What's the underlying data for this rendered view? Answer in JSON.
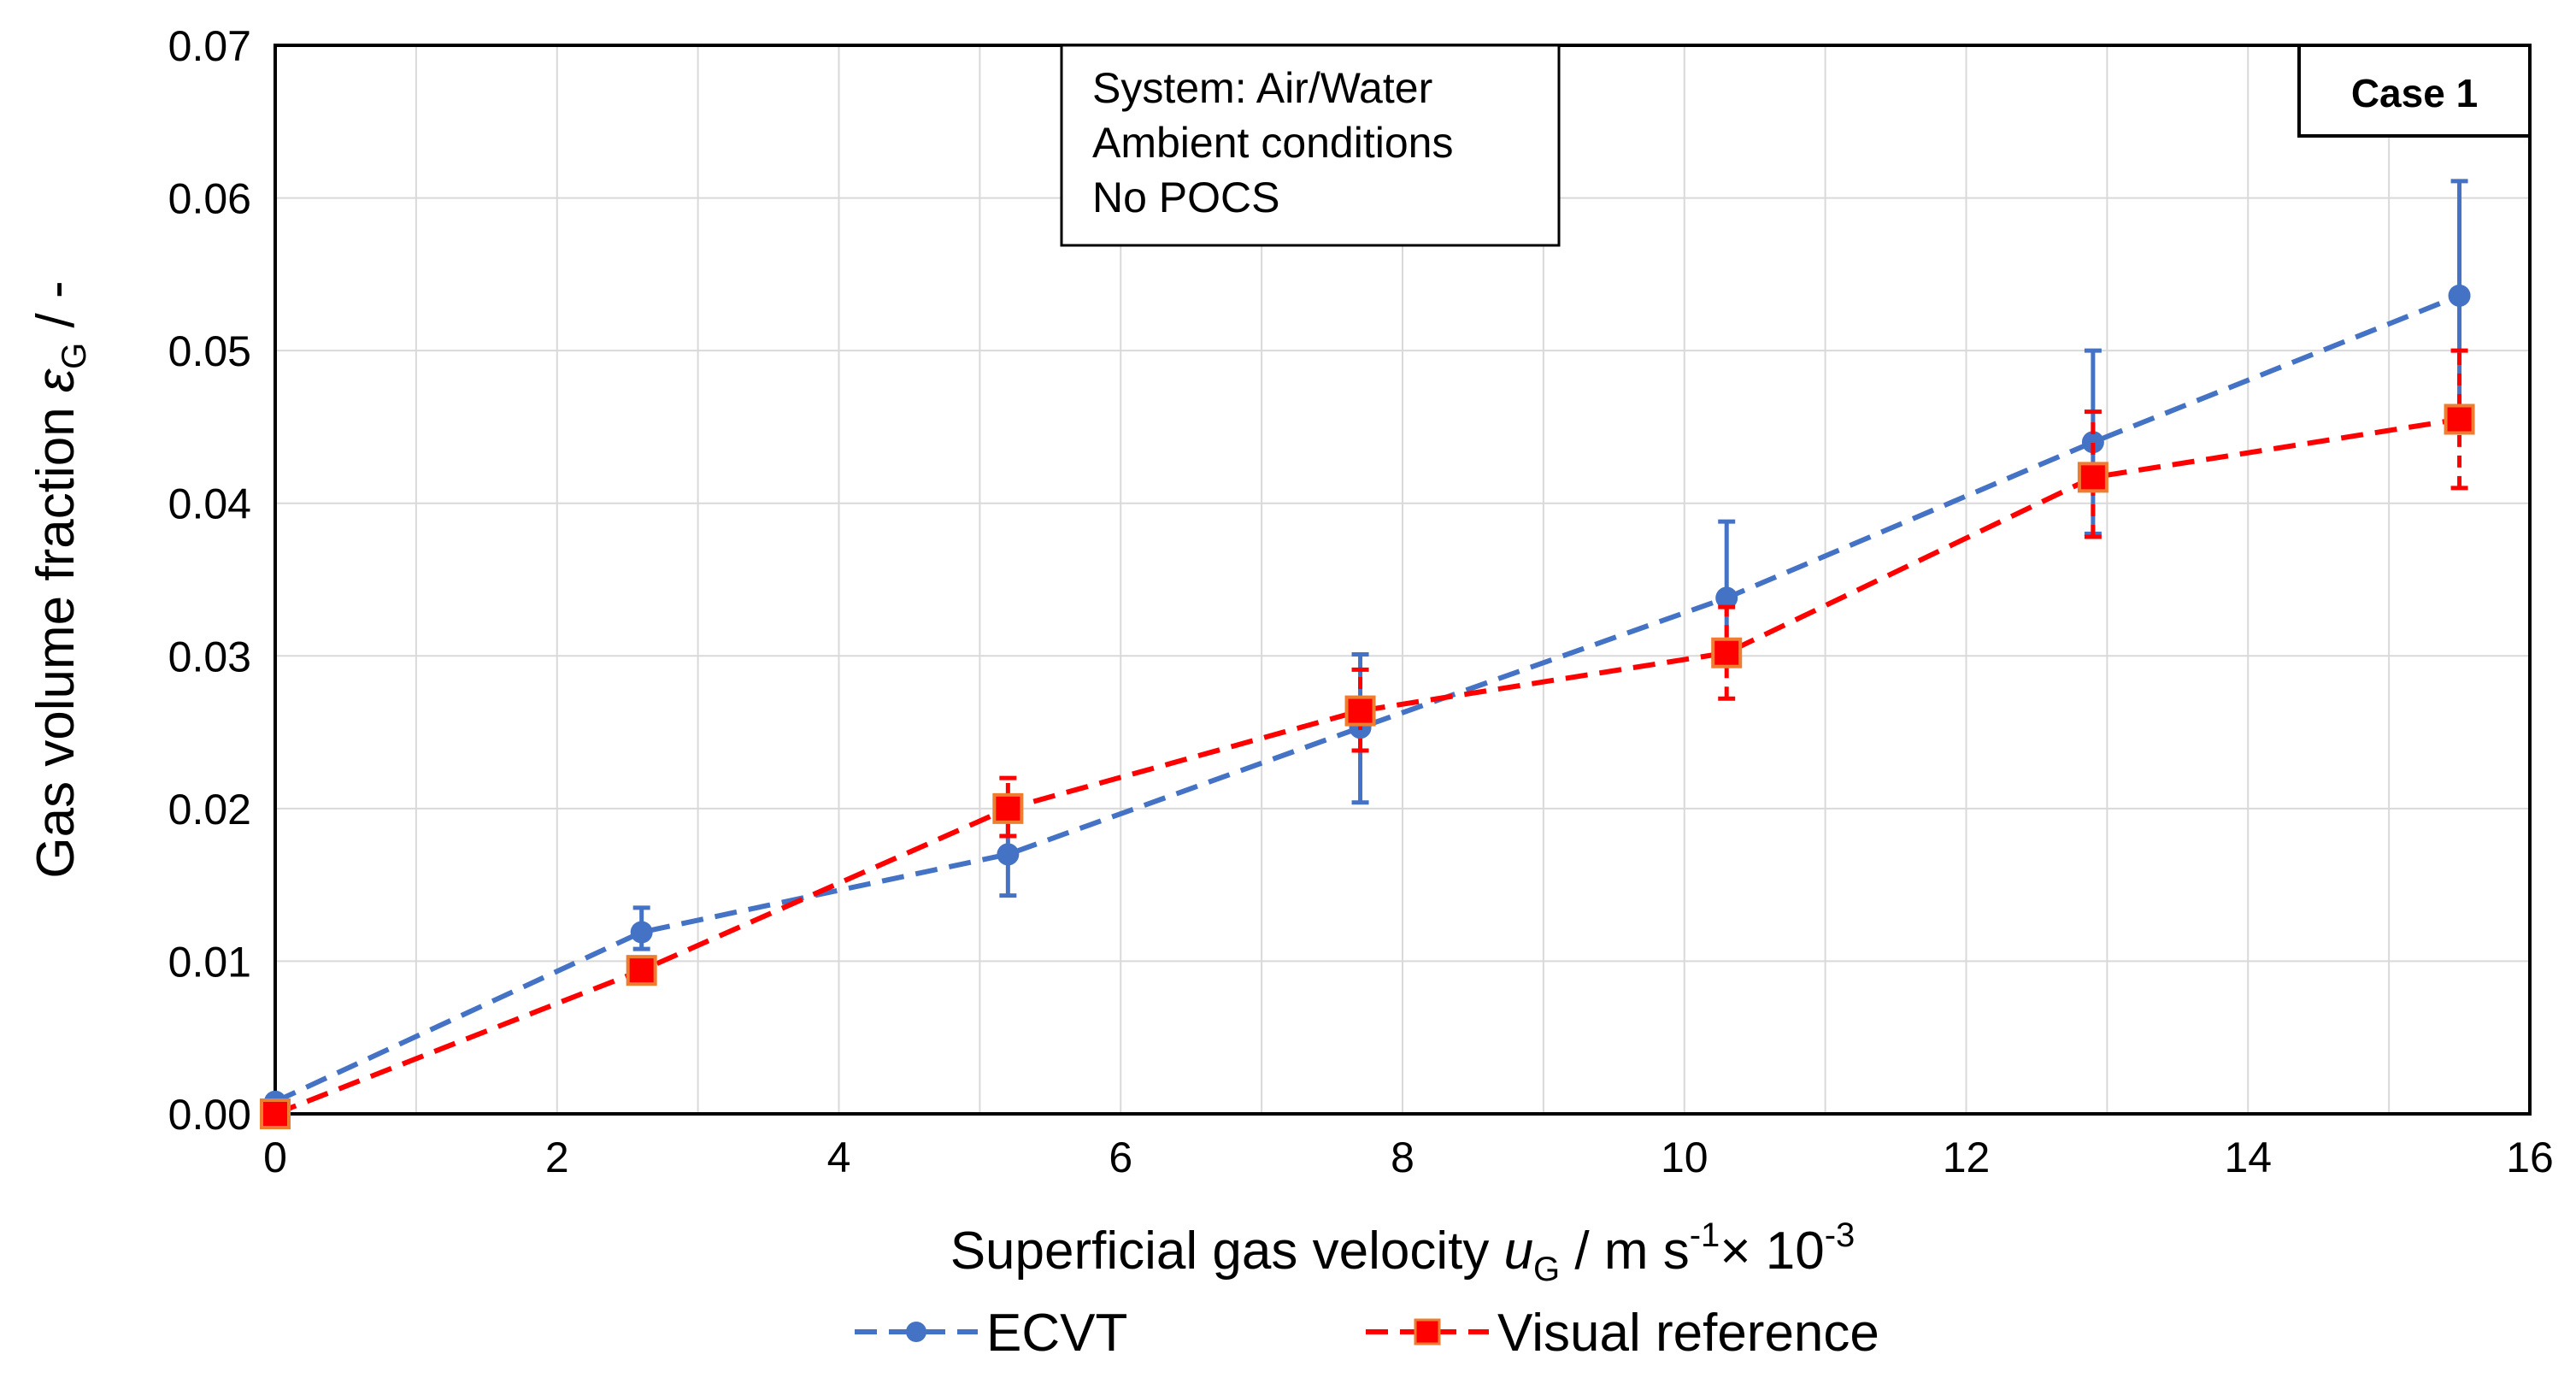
{
  "chart_data": {
    "type": "line",
    "title": "",
    "xlabel": {
      "prefix": "Superficial gas velocity ",
      "symbol": "u",
      "subscript": "G",
      "units": " / m s",
      "sup1": "-1",
      "mid": "× 10",
      "sup2": "-3"
    },
    "ylabel": {
      "prefix": "Gas volume fraction ",
      "symbol": "ε",
      "subscript": "G",
      "suffix": " / -"
    },
    "xlim": [
      0,
      16
    ],
    "ylim": [
      0,
      0.07
    ],
    "x_ticks": [
      "0",
      "2",
      "4",
      "6",
      "8",
      "10",
      "12",
      "14",
      "16"
    ],
    "y_ticks": [
      "0.00",
      "0.01",
      "0.02",
      "0.03",
      "0.04",
      "0.05",
      "0.06",
      "0.07"
    ],
    "grid": true,
    "legend_position": "bottom-center",
    "series": [
      {
        "name": "ECVT",
        "color": "#4472C4",
        "marker": "circle",
        "x": [
          0,
          2.6,
          5.2,
          7.7,
          10.3,
          12.9,
          15.5
        ],
        "y": [
          0.0008,
          0.0119,
          0.017,
          0.0253,
          0.0338,
          0.044,
          0.0536
        ],
        "err_low": [
          0,
          0.0011,
          0.0027,
          0.0049,
          0.0036,
          0.006,
          0.0085
        ],
        "err_high": [
          0,
          0.0016,
          0.0031,
          0.0048,
          0.005,
          0.006,
          0.0075
        ]
      },
      {
        "name": "Visual reference",
        "color": "#FF0000",
        "marker": "square",
        "marker_edge": "#ED7D31",
        "x": [
          0,
          2.6,
          5.2,
          7.7,
          10.3,
          12.9,
          15.5
        ],
        "y": [
          0,
          0.0094,
          0.02,
          0.0264,
          0.0302,
          0.0417,
          0.0455
        ],
        "err_low": [
          0,
          0.0006,
          0.0018,
          0.0026,
          0.003,
          0.0039,
          0.0045
        ],
        "err_high": [
          0,
          0.0006,
          0.002,
          0.0027,
          0.003,
          0.0043,
          0.0045
        ]
      }
    ],
    "annotations": {
      "info_lines": [
        "System: Air/Water",
        "Ambient conditions",
        "No POCS"
      ],
      "case_label": "Case 1"
    }
  }
}
